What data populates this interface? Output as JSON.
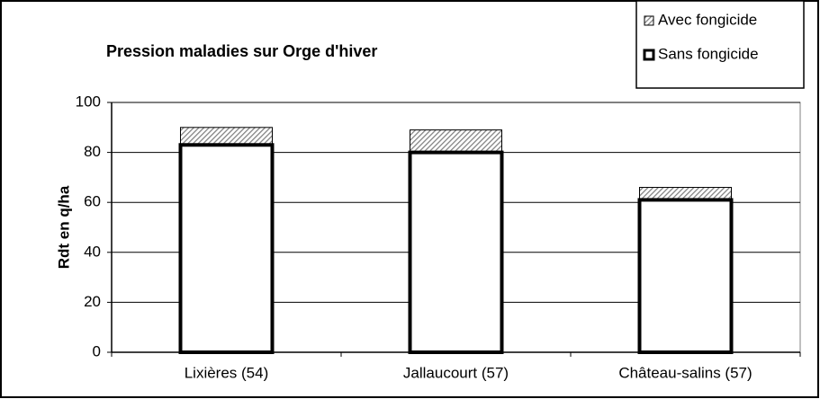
{
  "chart_data": {
    "type": "bar",
    "title": "Pression maladies sur Orge d'hiver",
    "y_label": "Rdt en q/ha",
    "categories": [
      "Lixières (54)",
      "Jallaucourt (57)",
      "Château-salins (57)"
    ],
    "series": [
      {
        "name": "Avec fongicide",
        "color": "#808080",
        "values": [
          90,
          89,
          66
        ]
      },
      {
        "name": "Sans fongicide",
        "color": "#ffffff",
        "values": [
          83,
          80,
          61
        ]
      }
    ],
    "ylim": [
      0,
      100
    ],
    "yticks": [
      0,
      20,
      40,
      60,
      80,
      100
    ],
    "grid": true,
    "legend": "top-right"
  }
}
